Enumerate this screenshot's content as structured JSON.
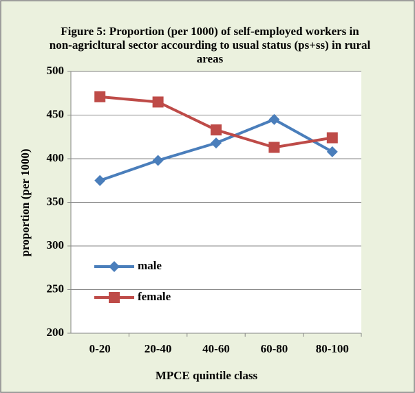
{
  "chart_data": {
    "type": "line",
    "title": "Figure 5: Proportion (per 1000) of self-employed workers in non-agricltural sector accourding to usual status (ps+ss) in rural areas",
    "x_label": "MPCE quintile class",
    "y_label": "proportion (per 1000)",
    "categories": [
      "0-20",
      "20-40",
      "40-60",
      "60-80",
      "80-100"
    ],
    "series": [
      {
        "name": "male",
        "color": "#4a7ebb",
        "marker": "diamond",
        "values": [
          375,
          398,
          418,
          445,
          408
        ]
      },
      {
        "name": "female",
        "color": "#be4b48",
        "marker": "square",
        "values": [
          471,
          465,
          433,
          413,
          424
        ]
      }
    ],
    "ylim": [
      200,
      500
    ],
    "yticks": [
      200,
      250,
      300,
      350,
      400,
      450,
      500
    ],
    "grid": true
  }
}
